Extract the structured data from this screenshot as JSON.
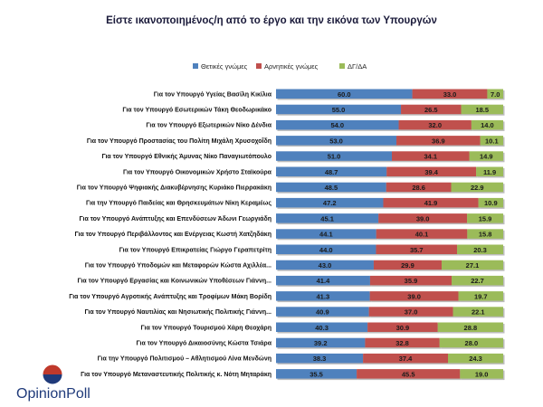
{
  "chart_data": {
    "type": "bar",
    "orientation": "horizontal",
    "stacked": true,
    "title": "Είστε ικανοποιημένος/η από το έργο και την εικόνα των Υπουργών",
    "legend_position": "top",
    "categories": [
      "Για τον Υπουργό Υγείας Βασίλη Κικίλια",
      "Για τον Υπουργό Εσωτερικών Τάκη Θεοδωρικάκο",
      "Για τον Υπουργό Εξωτερικών Νίκο Δένδια",
      "Για τον Υπουργό Προστασίας του Πολίτη Μιχάλη Χρυσοχοΐδη",
      "Για τον Υπουργό Εθνικής Άμυνας Νίκο Παναγιωτόπουλο",
      "Για τον Υπουργό Οικονομικών Χρήστο Σταϊκούρα",
      "Για τον Υπουργό Ψηφιακής Διακυβέρνησης Κυριάκο Πιερρακάκη",
      "Για την Υπουργό Παιδείας και Θρησκευμάτων Νίκη Κεραμέως",
      "Για τον Υπουργό Ανάπτυξης και Επενδύσεων Άδωνι Γεωργιάδη",
      "Για τον Υπουργό Περιβάλλοντος και Ενέργειας Κωστή Χατζηδάκη",
      "Για τον Υπουργό Επικρατείας Γιώργο Γεραπετρίτη",
      "Για τον Υπουργό Υποδομών και Μεταφορών Κώστα Αχιλλέα...",
      "Για τον Υπουργό Εργασίας και Κοινωνικών Υποθέσεων Γιάννη...",
      "Για τον Υπουργό Αγροτικής Ανάπτυξης και Τροφίμων Μάκη Βορίδη",
      "Για τον Υπουργό Ναυτιλίας και Νησιωτικής Πολιτικής Γιάννη...",
      "Για τον Υπουργό Τουρισμού Χάρη Θεοχάρη",
      "Για τον Υπουργό Δικαιοσύνης Κώστα Τσιάρα",
      "Για την Υπουργό Πολιτισμού – Αθλητισμού Λίνα Μενδώνη",
      "Για τον Υπουργό Μεταναστευτικής Πολιτικής κ. Νότη Μηταράκη"
    ],
    "series": [
      {
        "name": "Θετικές γνώμες",
        "color": "#4f81bd",
        "values": [
          60.0,
          55.0,
          54.0,
          53.0,
          51.0,
          48.7,
          48.5,
          47.2,
          45.1,
          44.1,
          44.0,
          43.0,
          41.4,
          41.3,
          40.9,
          40.3,
          39.2,
          38.3,
          35.5
        ],
        "labels": [
          "60.0",
          "55.0",
          "54.0",
          "53.0",
          "51.0",
          "48.7",
          "48.5",
          "47.2",
          "45.1",
          "44.1",
          "44.0",
          "43.0",
          "41.4",
          "41.3",
          "40.9",
          "40.3",
          "39.2",
          "38.3",
          "35.5"
        ]
      },
      {
        "name": "Αρνητικές γνώμες",
        "color": "#c0504d",
        "values": [
          33.0,
          26.5,
          32.0,
          36.9,
          34.1,
          39.4,
          28.6,
          41.9,
          39.0,
          40.1,
          35.7,
          29.9,
          35.9,
          39.0,
          37.0,
          30.9,
          32.8,
          37.4,
          45.5
        ],
        "labels": [
          "33.0",
          "26.5",
          "32.0",
          "36.9",
          "34.1",
          "39.4",
          "28.6",
          "41.9",
          "39.0",
          "40.1",
          "35.7",
          "29.9",
          "35.9",
          "39.0",
          "37.0",
          "30.9",
          "32.8",
          "37.4",
          "45.5"
        ]
      },
      {
        "name": "ΔΓ/ΔΑ",
        "color": "#9bbb59",
        "values": [
          7.0,
          18.5,
          14.0,
          10.1,
          14.9,
          11.9,
          22.9,
          10.9,
          15.9,
          15.8,
          20.3,
          27.1,
          22.7,
          19.7,
          22.1,
          28.8,
          28.0,
          24.3,
          19.0
        ],
        "labels": [
          "7.0",
          "18.5",
          "14.0",
          "10.1",
          "14.9",
          "11.9",
          "22.9",
          "10.9",
          "15.9",
          "15.8",
          "20.3",
          "27.1",
          "22.7",
          "19.7",
          "22.1",
          "28.8",
          "28.0",
          "24.3",
          "19.0"
        ]
      }
    ],
    "xlim": [
      0,
      100
    ],
    "grid": false
  },
  "logo": {
    "text": "OpinionPoll",
    "colors": {
      "red": "#c0392b",
      "blue": "#1f3a7a"
    }
  }
}
